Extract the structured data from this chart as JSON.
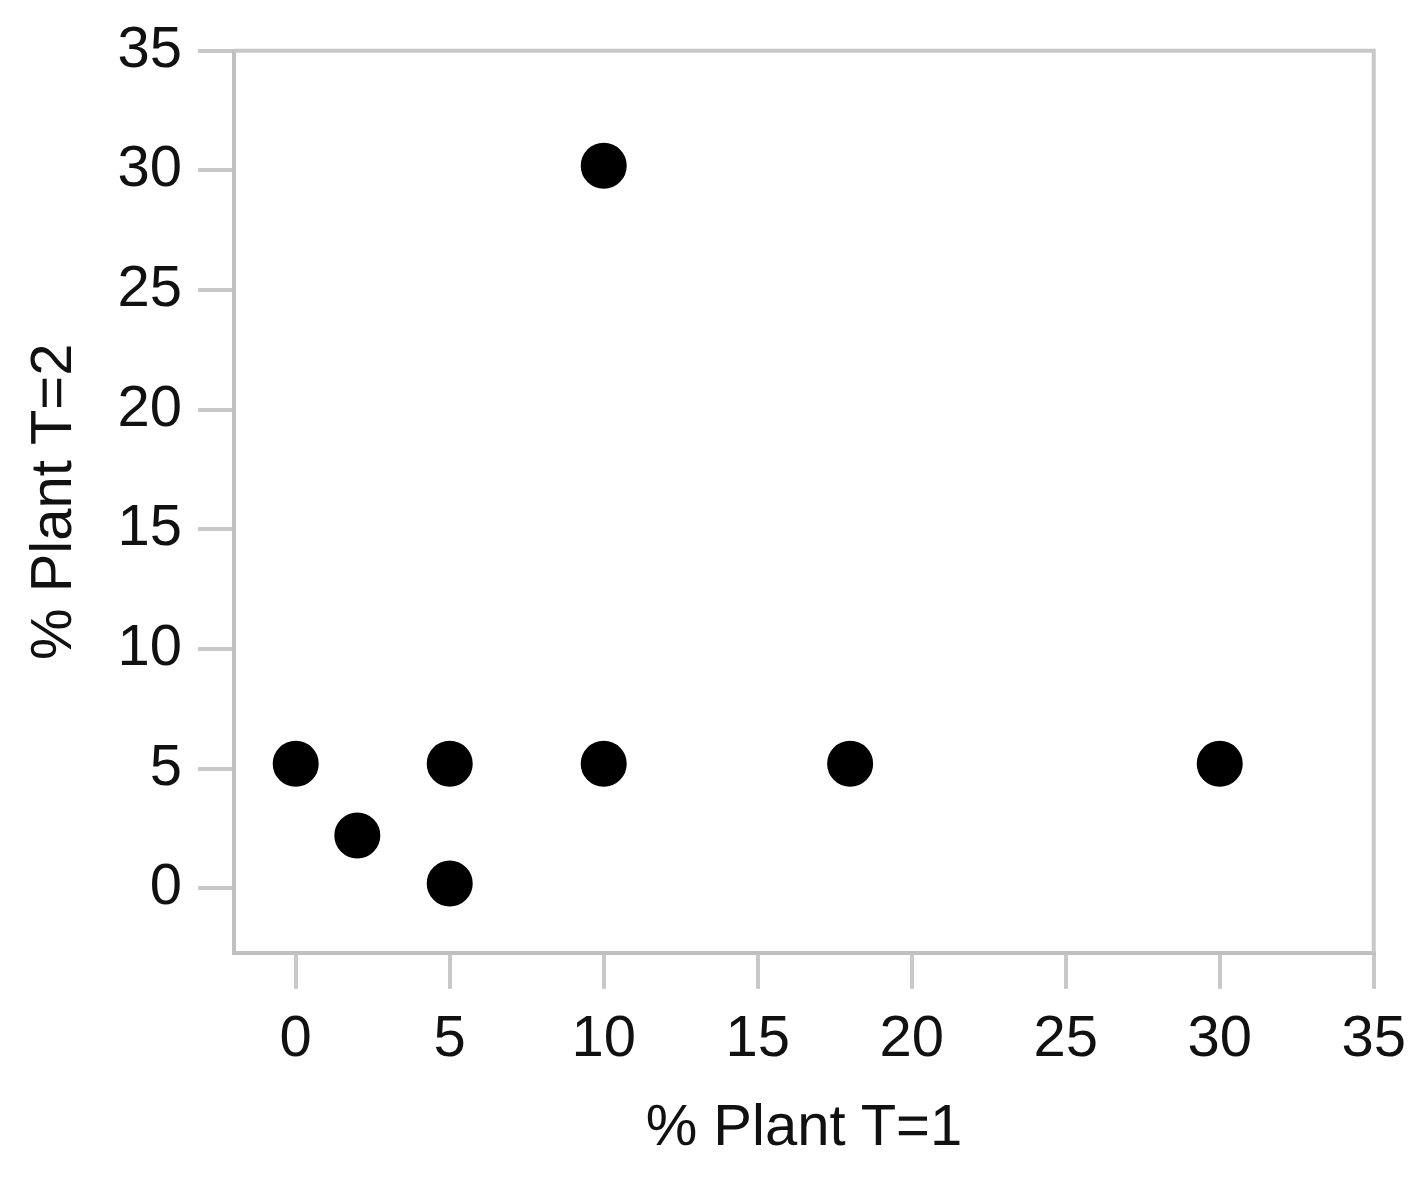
{
  "chart_data": {
    "type": "scatter",
    "xlabel": "% Plant T=1",
    "ylabel": "% Plant T=2",
    "x": [
      0,
      2,
      5,
      5,
      10,
      10,
      18,
      30
    ],
    "values": [
      5.2,
      2.2,
      5.2,
      0.2,
      5.2,
      30.2,
      5.2,
      5.2
    ],
    "color": "#000000",
    "marker": "circle",
    "xlim": [
      -2,
      35
    ],
    "xticks": [
      0,
      5,
      10,
      15,
      20,
      25,
      30,
      35
    ],
    "ylim": [
      -2.7,
      35
    ],
    "yticks": [
      0,
      5,
      10,
      15,
      20,
      25,
      30,
      35
    ],
    "grid": false,
    "legend": false
  }
}
